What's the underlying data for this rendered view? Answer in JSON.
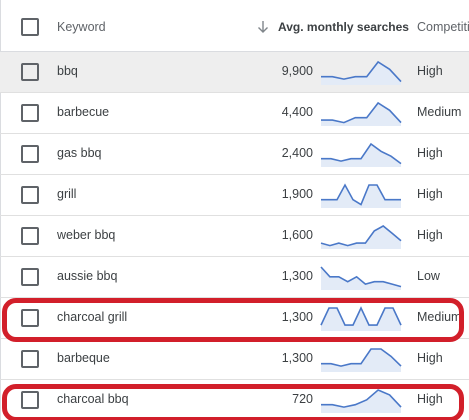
{
  "header": {
    "keyword_label": "Keyword",
    "avg_label": "Avg. monthly searches",
    "competition_label": "Competiti"
  },
  "colors": {
    "sparkline": "#4a78c8",
    "sparkline_fill": "#e3ebf7",
    "highlight_outline": "#d21f2a",
    "row_hover": "#eeeeee"
  },
  "rows": [
    {
      "keyword": "bbq",
      "searches": "9,900",
      "competition": "High",
      "trend": [
        3,
        3,
        2,
        3,
        3,
        9,
        6,
        1
      ]
    },
    {
      "keyword": "barbecue",
      "searches": "4,400",
      "competition": "Medium",
      "trend": [
        2,
        2,
        1,
        3,
        3,
        9,
        6,
        1
      ]
    },
    {
      "keyword": "gas bbq",
      "searches": "2,400",
      "competition": "High",
      "trend": [
        3,
        3,
        2,
        3,
        3,
        9,
        6,
        4,
        1
      ]
    },
    {
      "keyword": "grill",
      "searches": "1,900",
      "competition": "High",
      "trend": [
        3,
        3,
        3,
        9,
        3,
        1,
        9,
        9,
        3,
        3,
        3
      ]
    },
    {
      "keyword": "weber bbq",
      "searches": "1,600",
      "competition": "High",
      "trend": [
        2,
        1,
        2,
        1,
        2,
        2,
        7,
        9,
        6,
        3
      ]
    },
    {
      "keyword": "aussie bbq",
      "searches": "1,300",
      "competition": "Low",
      "trend": [
        9,
        5,
        5,
        3,
        5,
        2,
        3,
        3,
        2,
        1
      ]
    },
    {
      "keyword": "charcoal grill",
      "searches": "1,300",
      "competition": "Medium",
      "trend": [
        2,
        9,
        9,
        2,
        2,
        9,
        2,
        2,
        9,
        9,
        2
      ]
    },
    {
      "keyword": "barbeque",
      "searches": "1,300",
      "competition": "High",
      "trend": [
        3,
        3,
        2,
        3,
        3,
        9,
        9,
        6,
        2
      ]
    },
    {
      "keyword": "charcoal bbq",
      "searches": "720",
      "competition": "High",
      "trend": [
        3,
        3,
        2,
        3,
        5,
        9,
        7,
        2
      ]
    }
  ]
}
